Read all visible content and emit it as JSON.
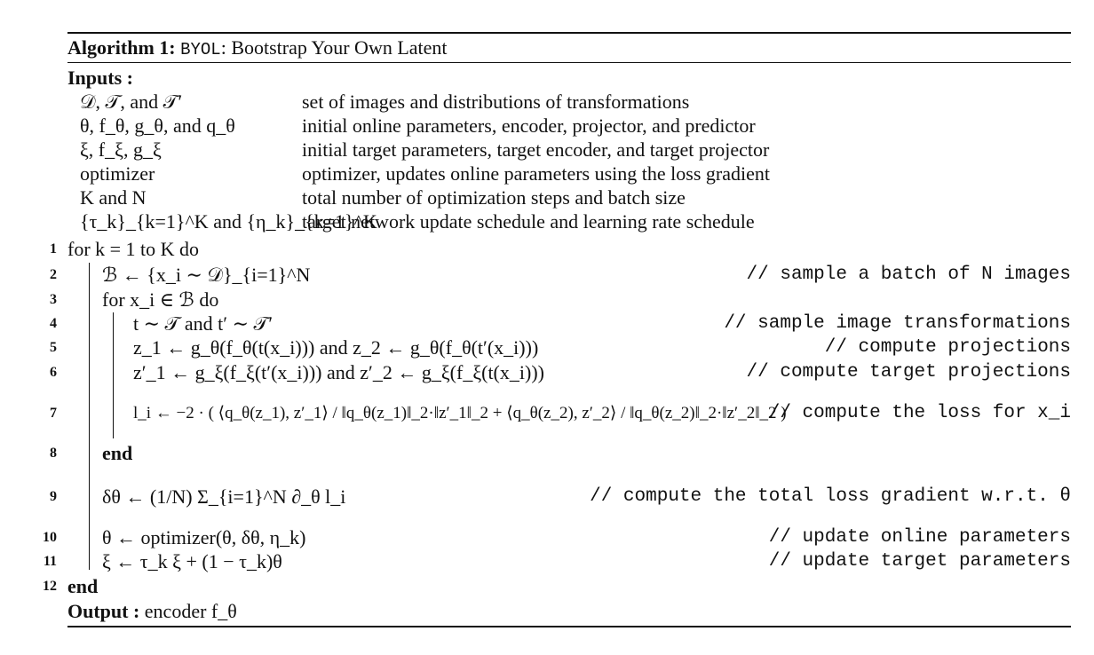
{
  "algorithm": {
    "label": "Algorithm 1:",
    "name": "BYOL",
    "title_rest": ": Bootstrap Your Own Latent"
  },
  "inputs": {
    "heading": "Inputs  :",
    "rows": [
      {
        "symbol": "𝒟, 𝒯, and 𝒯′",
        "desc": "set of images and distributions of transformations"
      },
      {
        "symbol": "θ, f_θ, g_θ, and q_θ",
        "desc": "initial online parameters, encoder, projector, and predictor"
      },
      {
        "symbol": "ξ, f_ξ, g_ξ",
        "desc": "initial target parameters, target encoder, and target projector"
      },
      {
        "symbol": "optimizer",
        "desc": "optimizer, updates online parameters using the loss gradient"
      },
      {
        "symbol": "K and N",
        "desc": "total number of optimization steps and batch size"
      },
      {
        "symbol": "{τ_k}_{k=1}^K and {η_k}_{k=1}^K",
        "desc": "target network update schedule and learning rate schedule"
      }
    ]
  },
  "lines": [
    {
      "num": "1",
      "code": "for k = 1 to K do",
      "comment": ""
    },
    {
      "num": "2",
      "code": "ℬ ← {x_i ∼ 𝒟}_{i=1}^N",
      "comment": "// sample a batch of N images"
    },
    {
      "num": "3",
      "code": "for x_i ∈ ℬ do",
      "comment": ""
    },
    {
      "num": "4",
      "code": "t ∼ 𝒯 and t′ ∼ 𝒯′",
      "comment": "// sample image transformations"
    },
    {
      "num": "5",
      "code": "z_1 ← g_θ(f_θ(t(x_i))) and z_2 ← g_θ(f_θ(t′(x_i)))",
      "comment": "// compute projections"
    },
    {
      "num": "6",
      "code": "z′_1 ← g_ξ(f_ξ(t′(x_i))) and z′_2 ← g_ξ(f_ξ(t(x_i)))",
      "comment": "// compute target projections"
    },
    {
      "num": "7",
      "code": "l_i ← −2 · ( ⟨q_θ(z_1), z′_1⟩ / ‖q_θ(z_1)‖_2·‖z′_1‖_2 + ⟨q_θ(z_2), z′_2⟩ / ‖q_θ(z_2)‖_2·‖z′_2‖_2 )",
      "comment": "// compute the loss for x_i"
    },
    {
      "num": "8",
      "code": "end",
      "comment": ""
    },
    {
      "num": "9",
      "code": "δθ ← (1/N) Σ_{i=1}^N ∂_θ l_i",
      "comment": "// compute the total loss gradient w.r.t. θ"
    },
    {
      "num": "10",
      "code": "θ ← optimizer(θ, δθ, η_k)",
      "comment": "// update online parameters"
    },
    {
      "num": "11",
      "code": "ξ ← τ_k ξ + (1 − τ_k)θ",
      "comment": "// update target parameters"
    },
    {
      "num": "12",
      "code": "end",
      "comment": ""
    }
  ],
  "output": {
    "label": "Output :",
    "value": "encoder f_θ"
  }
}
